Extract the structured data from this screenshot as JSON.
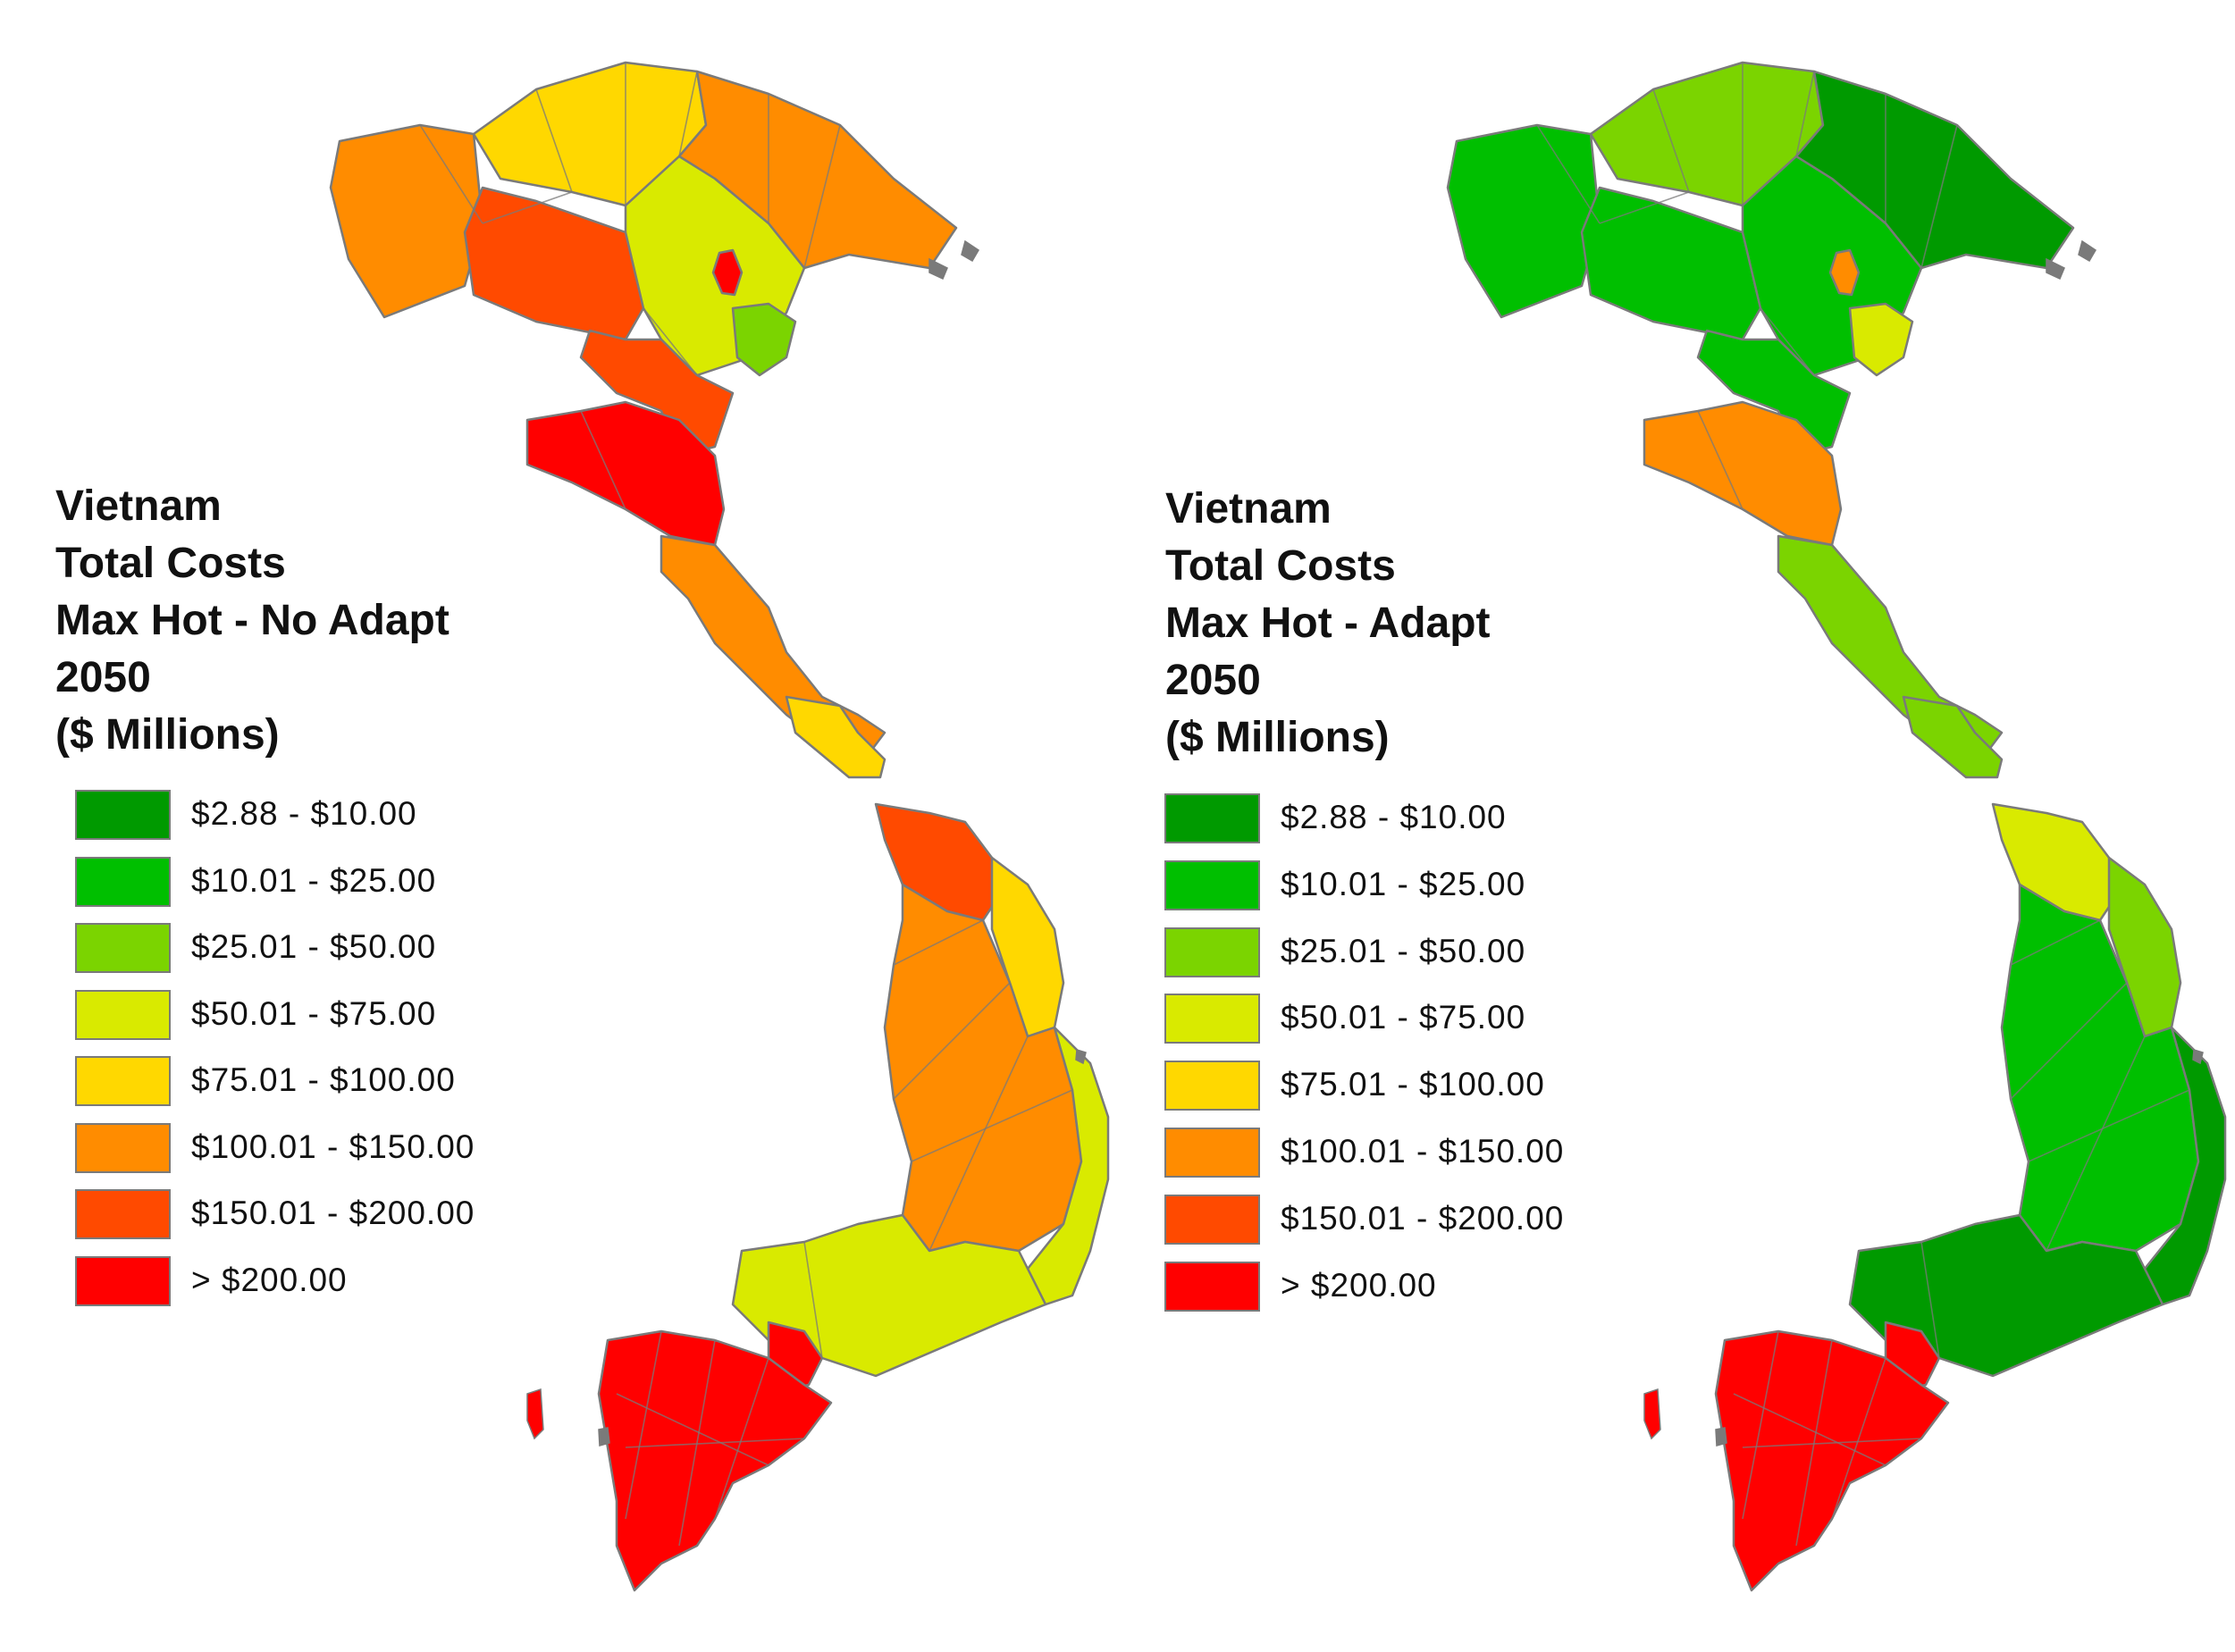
{
  "maps": [
    {
      "id": "no-adapt",
      "title_lines": [
        "Vietnam",
        "Total Costs",
        "Max Hot - No Adapt",
        "2050",
        "($ Millions)"
      ],
      "regions": {
        "northwest": "orange",
        "north_west_inner": "orange_red",
        "north_central_peaks": "yellow",
        "north_east": "orange",
        "red_delta": "yellow_green",
        "hanoi": "red",
        "delta_inner": "light_green",
        "thanh_hoa": "orange_red",
        "nghe_an": "red",
        "north_coast": "orange",
        "quang_tri": "yellow",
        "quang_nam": "orange_red",
        "central_coast": "yellow",
        "highlands": "orange",
        "south_coast": "yellow_green",
        "southeast": "yellow_green",
        "hcmc": "red",
        "mekong": "red"
      }
    },
    {
      "id": "adapt",
      "title_lines": [
        "Vietnam",
        "Total Costs",
        "Max Hot - Adapt",
        "2050",
        "($ Millions)"
      ],
      "regions": {
        "northwest": "green",
        "north_west_inner": "green",
        "north_central_peaks": "light_green",
        "north_east": "dark_green",
        "red_delta": "green",
        "hanoi": "orange",
        "delta_inner": "yellow_green",
        "thanh_hoa": "green",
        "nghe_an": "orange",
        "north_coast": "light_green",
        "quang_tri": "light_green",
        "quang_nam": "yellow_green",
        "central_coast": "light_green",
        "highlands": "green",
        "south_coast": "dark_green",
        "southeast": "dark_green",
        "hcmc": "red",
        "mekong": "red"
      }
    }
  ],
  "legend": [
    {
      "label": "$2.88 - $10.00",
      "key": "dark_green",
      "color": "#009a00"
    },
    {
      "label": "$10.01 - $25.00",
      "key": "green",
      "color": "#00bf00"
    },
    {
      "label": "$25.01 - $50.00",
      "key": "light_green",
      "color": "#7bd400"
    },
    {
      "label": "$50.01 - $75.00",
      "key": "yellow_green",
      "color": "#d9ea00"
    },
    {
      "label": "$75.01 - $100.00",
      "key": "yellow",
      "color": "#ffd800"
    },
    {
      "label": "$100.01 - $150.00",
      "key": "orange",
      "color": "#ff8c00"
    },
    {
      "label": "$150.01 - $200.00",
      "key": "orange_red",
      "color": "#ff4a00"
    },
    {
      "label": "> $200.00",
      "key": "red",
      "color": "#ff0000"
    }
  ],
  "coast_color": "#7a7a7a"
}
